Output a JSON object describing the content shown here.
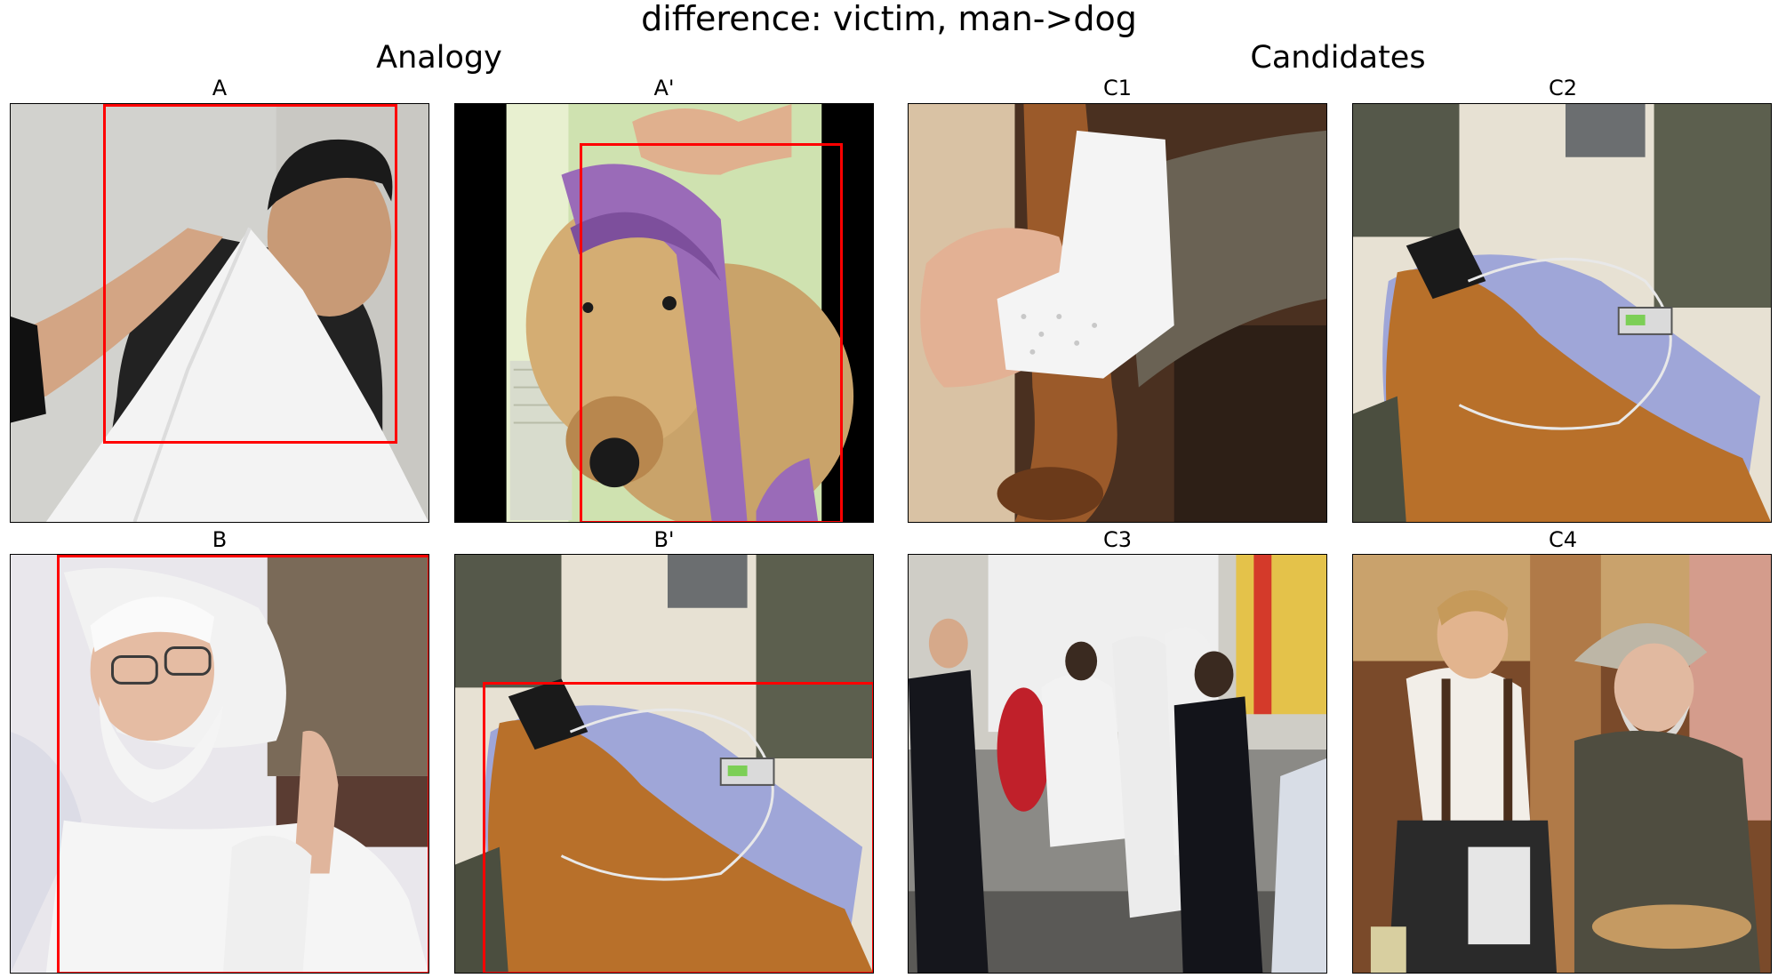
{
  "figure": {
    "title": "difference: victim, man->dog",
    "left_group_title": "Analogy",
    "right_group_title": "Candidates"
  },
  "panels": [
    {
      "label": "A",
      "content": "man-with-white-sling",
      "has_box": true,
      "box_color": "#ff0000"
    },
    {
      "label": "A'",
      "content": "stuffed-dog-bandaged",
      "has_box": true,
      "box_color": "#ff0000"
    },
    {
      "label": "C1",
      "content": "dog-leg-bandage",
      "has_box": false
    },
    {
      "label": "C2",
      "content": "dog-on-floor-with-iv",
      "has_box": false
    },
    {
      "label": "B",
      "content": "old-man-in-bed",
      "has_box": true,
      "box_color": "#ff0000"
    },
    {
      "label": "B'",
      "content": "dog-on-floor-with-iv",
      "has_box": true,
      "box_color": "#ff0000"
    },
    {
      "label": "C3",
      "content": "police-and-hazmat-team",
      "has_box": false
    },
    {
      "label": "C4",
      "content": "man-treating-old-man",
      "has_box": false
    }
  ]
}
